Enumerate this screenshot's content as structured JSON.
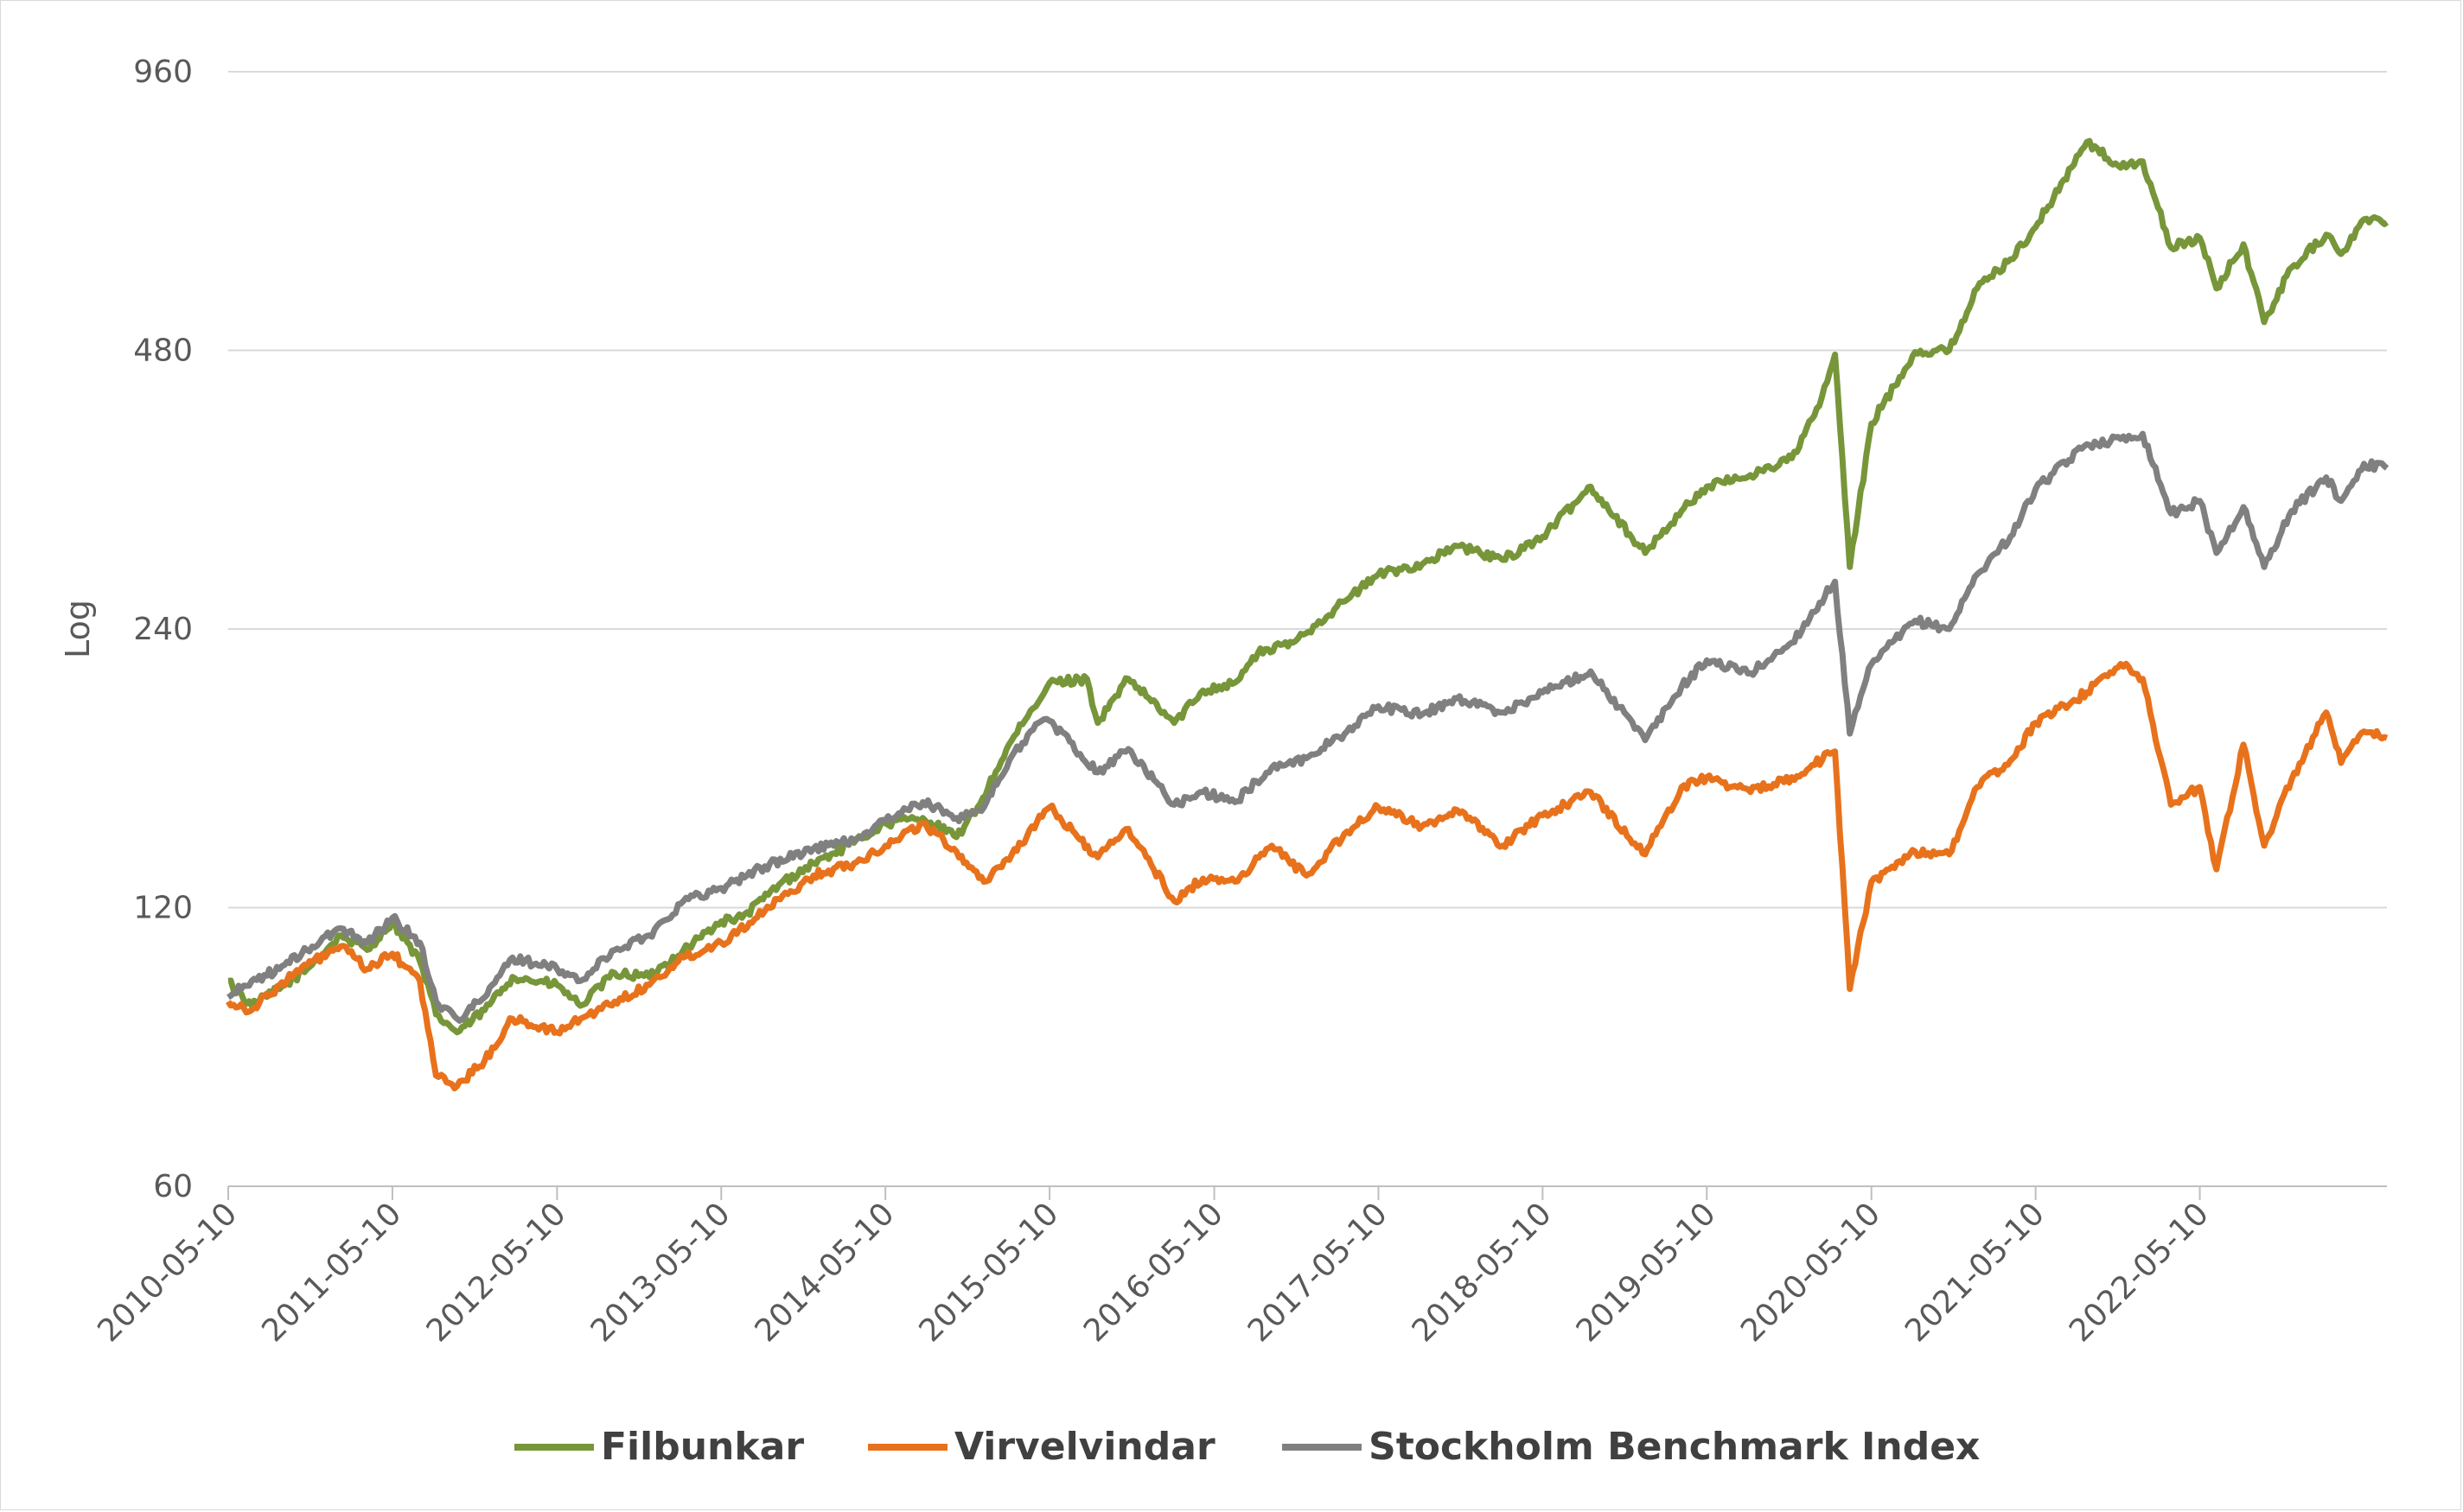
{
  "chart_data": {
    "type": "line",
    "title": "",
    "xlabel": "",
    "ylabel": "Log",
    "yscale": "log",
    "ylim": [
      60,
      960
    ],
    "yticks": [
      60,
      120,
      240,
      480,
      960
    ],
    "xlim": [
      "2010-05-10",
      "2023-06-30"
    ],
    "xticks": [
      "2010-05-10",
      "2011-05-10",
      "2012-05-10",
      "2013-05-10",
      "2014-05-10",
      "2015-05-10",
      "2016-05-10",
      "2017-05-10",
      "2018-05-10",
      "2019-05-10",
      "2020-05-10",
      "2021-05-10",
      "2022-05-10"
    ],
    "grid": "horizontal",
    "legend_position": "bottom",
    "series": [
      {
        "name": "Filbunkar",
        "color": "#77963a",
        "points": [
          [
            "2010-05-10",
            100
          ],
          [
            "2010-07-01",
            94
          ],
          [
            "2010-09-01",
            98
          ],
          [
            "2010-11-01",
            103
          ],
          [
            "2011-01-15",
            112
          ],
          [
            "2011-03-15",
            108
          ],
          [
            "2011-05-10",
            116
          ],
          [
            "2011-07-10",
            105
          ],
          [
            "2011-08-15",
            92
          ],
          [
            "2011-10-01",
            88
          ],
          [
            "2011-12-01",
            93
          ],
          [
            "2012-02-01",
            101
          ],
          [
            "2012-05-10",
            99
          ],
          [
            "2012-07-01",
            94
          ],
          [
            "2012-09-15",
            102
          ],
          [
            "2012-12-01",
            101
          ],
          [
            "2013-02-15",
            108
          ],
          [
            "2013-05-10",
            116
          ],
          [
            "2013-06-25",
            117
          ],
          [
            "2013-09-15",
            127
          ],
          [
            "2013-12-01",
            134
          ],
          [
            "2014-03-01",
            141
          ],
          [
            "2014-05-10",
            148
          ],
          [
            "2014-08-01",
            150
          ],
          [
            "2014-10-15",
            143
          ],
          [
            "2014-12-01",
            154
          ],
          [
            "2015-02-15",
            182
          ],
          [
            "2015-04-15",
            200
          ],
          [
            "2015-05-10",
            210
          ],
          [
            "2015-08-01",
            212
          ],
          [
            "2015-08-25",
            190
          ],
          [
            "2015-11-01",
            212
          ],
          [
            "2016-02-11",
            190
          ],
          [
            "2016-04-15",
            206
          ],
          [
            "2016-06-25",
            210
          ],
          [
            "2016-08-15",
            226
          ],
          [
            "2016-11-01",
            232
          ],
          [
            "2017-02-01",
            252
          ],
          [
            "2017-05-10",
            275
          ],
          [
            "2017-08-15",
            282
          ],
          [
            "2017-11-01",
            295
          ],
          [
            "2018-02-10",
            285
          ],
          [
            "2018-05-10",
            302
          ],
          [
            "2018-08-25",
            342
          ],
          [
            "2018-12-24",
            290
          ],
          [
            "2019-03-15",
            322
          ],
          [
            "2019-05-10",
            342
          ],
          [
            "2019-08-15",
            352
          ],
          [
            "2019-11-15",
            367
          ],
          [
            "2020-01-15",
            418
          ],
          [
            "2020-02-19",
            475
          ],
          [
            "2020-03-23",
            280
          ],
          [
            "2020-05-10",
            400
          ],
          [
            "2020-08-15",
            478
          ],
          [
            "2020-10-30",
            480
          ],
          [
            "2020-12-31",
            560
          ],
          [
            "2021-03-15",
            602
          ],
          [
            "2021-05-10",
            652
          ],
          [
            "2021-09-01",
            806
          ],
          [
            "2021-11-15",
            756
          ],
          [
            "2022-01-03",
            768
          ],
          [
            "2022-03-07",
            620
          ],
          [
            "2022-05-10",
            635
          ],
          [
            "2022-06-16",
            560
          ],
          [
            "2022-08-15",
            625
          ],
          [
            "2022-09-30",
            515
          ],
          [
            "2022-11-30",
            590
          ],
          [
            "2023-02-15",
            640
          ],
          [
            "2023-03-20",
            610
          ],
          [
            "2023-05-10",
            665
          ],
          [
            "2023-06-30",
            660
          ]
        ]
      },
      {
        "name": "Virvelvindar",
        "color": "#e8721c",
        "points": [
          [
            "2010-05-10",
            95
          ],
          [
            "2010-07-01",
            93
          ],
          [
            "2010-09-01",
            99
          ],
          [
            "2010-11-01",
            104
          ],
          [
            "2011-01-15",
            109
          ],
          [
            "2011-03-15",
            103
          ],
          [
            "2011-05-10",
            107
          ],
          [
            "2011-07-10",
            100
          ],
          [
            "2011-08-15",
            79
          ],
          [
            "2011-10-01",
            77
          ],
          [
            "2011-12-01",
            82
          ],
          [
            "2012-02-01",
            91
          ],
          [
            "2012-05-10",
            88
          ],
          [
            "2012-07-01",
            91
          ],
          [
            "2012-09-15",
            95
          ],
          [
            "2012-12-01",
            99
          ],
          [
            "2013-02-15",
            106
          ],
          [
            "2013-05-10",
            110
          ],
          [
            "2013-08-15",
            119
          ],
          [
            "2013-12-01",
            130
          ],
          [
            "2014-03-01",
            134
          ],
          [
            "2014-05-10",
            140
          ],
          [
            "2014-08-01",
            148
          ],
          [
            "2014-10-15",
            138
          ],
          [
            "2014-12-15",
            128
          ],
          [
            "2015-02-15",
            137
          ],
          [
            "2015-05-10",
            154
          ],
          [
            "2015-08-25",
            136
          ],
          [
            "2015-11-01",
            146
          ],
          [
            "2016-02-11",
            122
          ],
          [
            "2016-04-15",
            129
          ],
          [
            "2016-06-25",
            128
          ],
          [
            "2016-09-15",
            140
          ],
          [
            "2016-12-01",
            130
          ],
          [
            "2017-03-01",
            145
          ],
          [
            "2017-05-10",
            154
          ],
          [
            "2017-08-15",
            147
          ],
          [
            "2017-11-01",
            153
          ],
          [
            "2018-02-10",
            140
          ],
          [
            "2018-05-10",
            151
          ],
          [
            "2018-08-25",
            160
          ],
          [
            "2018-12-24",
            137
          ],
          [
            "2019-03-15",
            162
          ],
          [
            "2019-05-10",
            166
          ],
          [
            "2019-08-15",
            160
          ],
          [
            "2019-11-15",
            166
          ],
          [
            "2020-02-19",
            177
          ],
          [
            "2020-03-23",
            98
          ],
          [
            "2020-05-10",
            128
          ],
          [
            "2020-08-15",
            138
          ],
          [
            "2020-10-30",
            137
          ],
          [
            "2020-12-31",
            162
          ],
          [
            "2021-03-15",
            173
          ],
          [
            "2021-05-10",
            190
          ],
          [
            "2021-09-01",
            205
          ],
          [
            "2021-11-15",
            220
          ],
          [
            "2022-01-03",
            212
          ],
          [
            "2022-03-07",
            155
          ],
          [
            "2022-05-10",
            162
          ],
          [
            "2022-06-16",
            132
          ],
          [
            "2022-08-15",
            180
          ],
          [
            "2022-09-30",
            140
          ],
          [
            "2022-11-30",
            165
          ],
          [
            "2023-02-15",
            195
          ],
          [
            "2023-03-20",
            172
          ],
          [
            "2023-05-10",
            186
          ],
          [
            "2023-06-30",
            183
          ]
        ]
      },
      {
        "name": "Stockholm Benchmark Index",
        "color": "#808080",
        "points": [
          [
            "2010-05-10",
            96
          ],
          [
            "2010-07-01",
            100
          ],
          [
            "2010-09-01",
            103
          ],
          [
            "2010-11-01",
            108
          ],
          [
            "2011-01-15",
            114
          ],
          [
            "2011-03-15",
            110
          ],
          [
            "2011-05-10",
            117
          ],
          [
            "2011-07-10",
            110
          ],
          [
            "2011-08-15",
            95
          ],
          [
            "2011-10-01",
            91
          ],
          [
            "2011-12-01",
            96
          ],
          [
            "2012-02-01",
            106
          ],
          [
            "2012-05-10",
            103
          ],
          [
            "2012-07-01",
            100
          ],
          [
            "2012-09-15",
            108
          ],
          [
            "2012-12-01",
            112
          ],
          [
            "2013-02-15",
            122
          ],
          [
            "2013-05-10",
            126
          ],
          [
            "2013-08-15",
            133
          ],
          [
            "2013-12-01",
            139
          ],
          [
            "2014-03-01",
            142
          ],
          [
            "2014-05-10",
            149
          ],
          [
            "2014-08-01",
            156
          ],
          [
            "2014-10-15",
            150
          ],
          [
            "2014-12-15",
            154
          ],
          [
            "2015-02-15",
            175
          ],
          [
            "2015-04-15",
            190
          ],
          [
            "2015-05-10",
            191
          ],
          [
            "2015-08-25",
            168
          ],
          [
            "2015-11-01",
            178
          ],
          [
            "2016-02-11",
            155
          ],
          [
            "2016-04-15",
            160
          ],
          [
            "2016-06-25",
            156
          ],
          [
            "2016-09-15",
            170
          ],
          [
            "2016-12-01",
            174
          ],
          [
            "2017-03-01",
            186
          ],
          [
            "2017-05-10",
            198
          ],
          [
            "2017-08-15",
            194
          ],
          [
            "2017-11-01",
            202
          ],
          [
            "2018-02-10",
            195
          ],
          [
            "2018-05-10",
            205
          ],
          [
            "2018-08-25",
            216
          ],
          [
            "2018-12-24",
            182
          ],
          [
            "2019-03-15",
            208
          ],
          [
            "2019-05-10",
            222
          ],
          [
            "2019-08-15",
            215
          ],
          [
            "2019-11-15",
            232
          ],
          [
            "2020-02-19",
            270
          ],
          [
            "2020-03-23",
            185
          ],
          [
            "2020-05-10",
            220
          ],
          [
            "2020-08-15",
            245
          ],
          [
            "2020-10-30",
            240
          ],
          [
            "2020-12-31",
            275
          ],
          [
            "2021-03-15",
            302
          ],
          [
            "2021-05-10",
            340
          ],
          [
            "2021-09-01",
            380
          ],
          [
            "2021-11-15",
            385
          ],
          [
            "2022-01-03",
            390
          ],
          [
            "2022-03-07",
            320
          ],
          [
            "2022-05-10",
            330
          ],
          [
            "2022-06-16",
            290
          ],
          [
            "2022-08-15",
            325
          ],
          [
            "2022-09-30",
            280
          ],
          [
            "2022-11-30",
            322
          ],
          [
            "2023-02-15",
            350
          ],
          [
            "2023-03-20",
            330
          ],
          [
            "2023-05-10",
            362
          ],
          [
            "2023-06-30",
            358
          ]
        ]
      }
    ]
  }
}
